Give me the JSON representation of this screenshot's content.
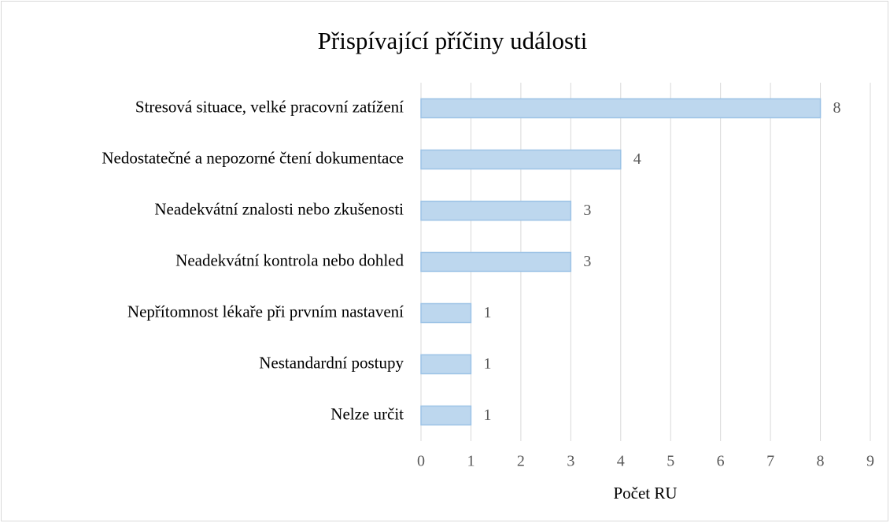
{
  "chart_data": {
    "type": "barh",
    "title": "Přispívající příčiny události",
    "categories": [
      "Stresová situace, velké pracovní zatížení",
      "Nedostatečné a nepozorné čtení dokumentace",
      "Neadekvátní znalosti nebo zkušenosti",
      "Neadekvátní kontrola nebo dohled",
      "Nepřítomnost lékaře při prvním nastavení",
      "Nestandardní postupy",
      "Nelze určit"
    ],
    "values": [
      8,
      4,
      3,
      3,
      1,
      1,
      1
    ],
    "color": "#bdd7ee",
    "edge_color": "#9dc3e6",
    "xlabel": "Počet RU",
    "xlim": [
      0,
      9
    ],
    "xticks": [
      0,
      1,
      2,
      3,
      4,
      5,
      6,
      7,
      8,
      9
    ],
    "grid": true
  }
}
